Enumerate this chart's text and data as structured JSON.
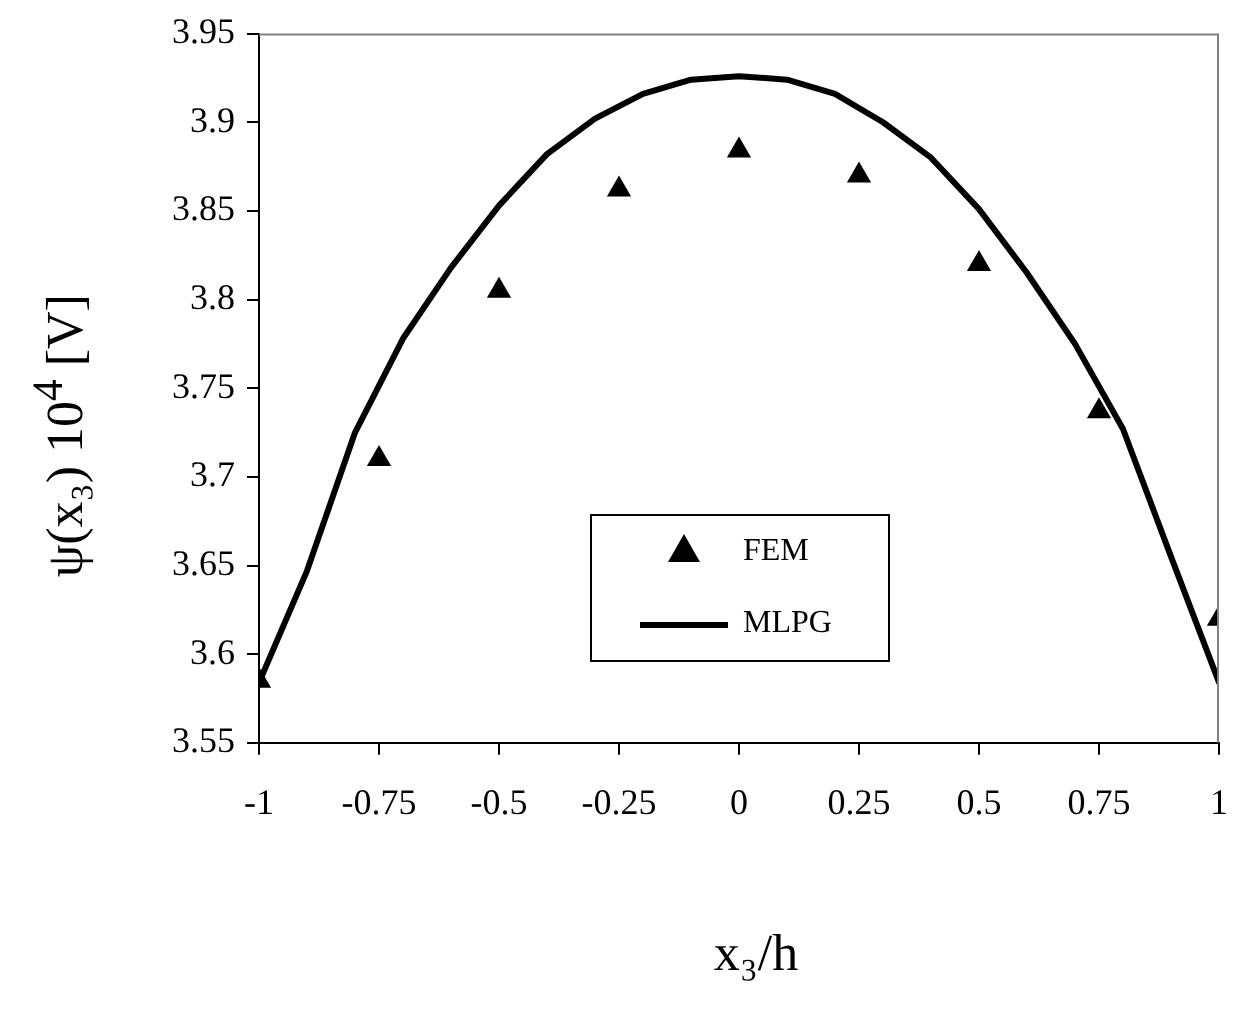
{
  "chart_data": {
    "type": "scatter",
    "xlabel": "x₃/h",
    "ylabel": "ψ(x₃) 10$^{4}$ [V]",
    "xlim": [
      -1,
      1
    ],
    "xticks": [
      -1,
      -0.75,
      -0.5,
      -0.25,
      0,
      0.25,
      0.5,
      0.75,
      1
    ],
    "ylim": [
      3.55,
      3.95
    ],
    "yticks": [
      3.55,
      3.6,
      3.65,
      3.7,
      3.75,
      3.8,
      3.85,
      3.9,
      3.95
    ],
    "grid": false,
    "legend": "bottom",
    "series": [
      {
        "name": "FEM",
        "marker": "triangle",
        "color": "#000000",
        "x": [
          -1,
          -0.75,
          -0.5,
          -0.25,
          0,
          0.25,
          0.5,
          0.75,
          1
        ],
        "values": [
          3.585,
          3.71,
          3.805,
          3.862,
          3.884,
          3.87,
          3.82,
          3.737,
          3.62
        ]
      },
      {
        "name": "MLPG",
        "type": "line",
        "marker": "none",
        "line_style": "solid",
        "color": "#000000",
        "x": [
          -1,
          -0.9,
          -0.8,
          -0.7,
          -0.6,
          -0.5,
          -0.4,
          -0.3,
          -0.2,
          -0.1,
          0,
          0.1,
          0.2,
          0.3,
          0.4,
          0.5,
          0.6,
          0.7,
          0.8,
          0.9,
          1
        ],
        "values": [
          3.584,
          3.647,
          3.725,
          3.778,
          3.818,
          3.853,
          3.882,
          3.902,
          3.916,
          3.924,
          3.926,
          3.924,
          3.916,
          3.9,
          3.88,
          3.851,
          3.815,
          3.775,
          3.727,
          3.655,
          3.584
        ]
      }
    ]
  }
}
